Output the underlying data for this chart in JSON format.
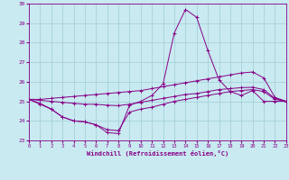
{
  "xlabel": "Windchill (Refroidissement éolien,°C)",
  "xlim": [
    0,
    23
  ],
  "ylim": [
    23,
    30
  ],
  "yticks": [
    23,
    24,
    25,
    26,
    27,
    28,
    29,
    30
  ],
  "xticks": [
    0,
    1,
    2,
    3,
    4,
    5,
    6,
    7,
    8,
    9,
    10,
    11,
    12,
    13,
    14,
    15,
    16,
    17,
    18,
    19,
    20,
    21,
    22,
    23
  ],
  "background_color": "#c8eaf0",
  "grid_color": "#a0ccd4",
  "line_color": "#880088",
  "lines": [
    {
      "x": [
        0,
        1,
        2,
        3,
        4,
        5,
        6,
        7,
        8,
        9,
        10,
        11,
        12,
        13,
        14,
        15,
        16,
        17,
        18,
        19,
        20,
        21,
        22,
        23
      ],
      "y": [
        25.1,
        24.9,
        24.6,
        24.2,
        24.0,
        23.95,
        23.8,
        23.4,
        23.35,
        24.8,
        25.0,
        25.3,
        25.9,
        28.5,
        29.7,
        29.3,
        27.6,
        26.1,
        25.5,
        25.3,
        25.55,
        25.0,
        25.0,
        25.0
      ]
    },
    {
      "x": [
        0,
        1,
        2,
        3,
        4,
        5,
        6,
        7,
        8,
        9,
        10,
        11,
        12,
        13,
        14,
        15,
        16,
        17,
        18,
        19,
        20,
        21,
        22,
        23
      ],
      "y": [
        25.1,
        25.1,
        25.15,
        25.2,
        25.25,
        25.3,
        25.35,
        25.4,
        25.45,
        25.5,
        25.55,
        25.65,
        25.75,
        25.85,
        25.95,
        26.05,
        26.15,
        26.25,
        26.35,
        26.45,
        26.5,
        26.2,
        25.2,
        25.0
      ]
    },
    {
      "x": [
        0,
        1,
        2,
        3,
        4,
        5,
        6,
        7,
        8,
        9,
        10,
        11,
        12,
        13,
        14,
        15,
        16,
        17,
        18,
        19,
        20,
        21,
        22,
        23
      ],
      "y": [
        25.1,
        25.05,
        25.0,
        24.95,
        24.9,
        24.85,
        24.85,
        24.8,
        24.78,
        24.85,
        24.95,
        25.05,
        25.15,
        25.25,
        25.35,
        25.4,
        25.5,
        25.6,
        25.65,
        25.7,
        25.72,
        25.6,
        25.15,
        25.0
      ]
    },
    {
      "x": [
        0,
        1,
        2,
        3,
        4,
        5,
        6,
        7,
        8,
        9,
        10,
        11,
        12,
        13,
        14,
        15,
        16,
        17,
        18,
        19,
        20,
        21,
        22,
        23
      ],
      "y": [
        25.1,
        24.85,
        24.6,
        24.2,
        24.0,
        23.95,
        23.8,
        23.55,
        23.5,
        24.45,
        24.6,
        24.7,
        24.85,
        25.0,
        25.1,
        25.2,
        25.3,
        25.4,
        25.5,
        25.55,
        25.6,
        25.5,
        25.1,
        25.0
      ]
    }
  ]
}
